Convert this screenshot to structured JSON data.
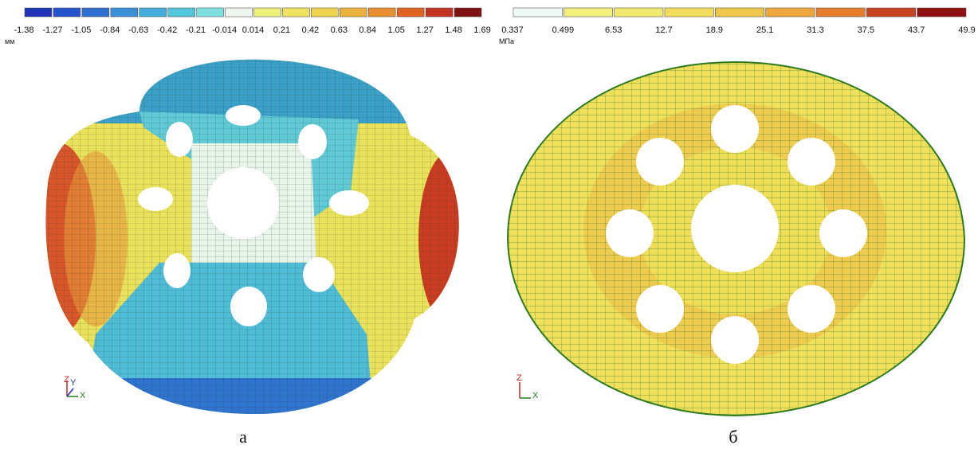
{
  "panels": [
    {
      "legend": {
        "labels": [
          "-1.38",
          "-1.27",
          "-1.05",
          "-0.84",
          "-0.63",
          "-0.42",
          "-0.21",
          "-0.014",
          "0.014",
          "0.21",
          "0.42",
          "0.63",
          "0.84",
          "1.05",
          "1.27",
          "1.48",
          "1.69"
        ],
        "colors": [
          "#1f33b8",
          "#2452cc",
          "#2f6fd2",
          "#3a8fd6",
          "#43aede",
          "#52c6dc",
          "#7fdfe0",
          "#eef7ef",
          "#eef07c",
          "#eee260",
          "#efd24e",
          "#ecb23e",
          "#e89030",
          "#e06322",
          "#c23220",
          "#7e1212"
        ]
      },
      "unit": "мм",
      "axes": [
        "Z",
        "Y",
        "X"
      ],
      "caption": "а"
    },
    {
      "legend": {
        "labels": [
          "0.337",
          "0.499",
          "6.53",
          "12.7",
          "18.9",
          "25.1",
          "31.3",
          "37.5",
          "43.7",
          "49.9"
        ],
        "colors": [
          "#eefaf5",
          "#f4f07e",
          "#f3e86e",
          "#f3dc5c",
          "#f1c64a",
          "#eda63c",
          "#e57e2c",
          "#c84420",
          "#8e1010"
        ]
      },
      "unit": "МПа",
      "axes": [
        "Z",
        "X"
      ],
      "caption": "б"
    }
  ]
}
